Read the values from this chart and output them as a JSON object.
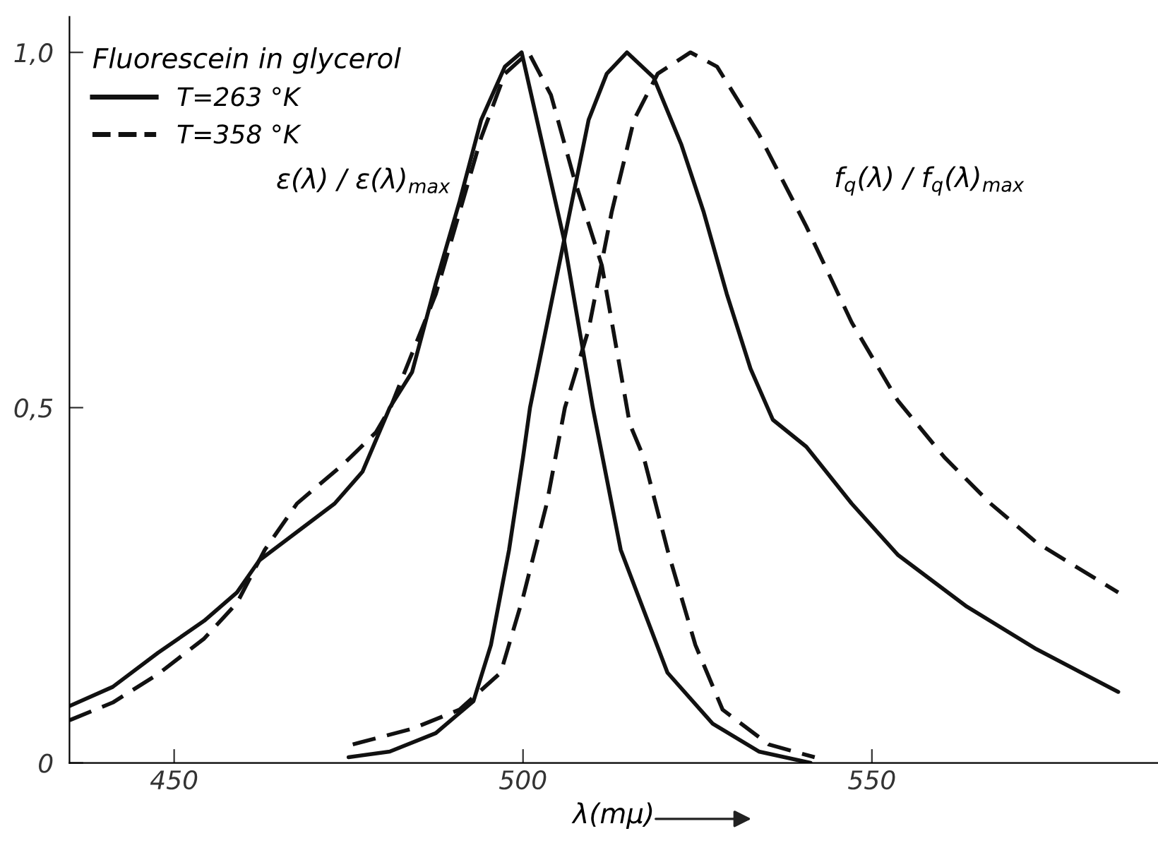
{
  "chart_data": {
    "type": "line",
    "xlabel": "λ(mμ)",
    "legend_title": "Fluorescein in glycerol",
    "legend": "top left",
    "grid": false,
    "marker": "none",
    "xlim": [
      435,
      591
    ],
    "ylim": [
      0,
      1.05
    ],
    "xticks": [
      450,
      500,
      550
    ],
    "yticks": [
      {
        "value": 0,
        "label": "0"
      },
      {
        "value": 0.5,
        "label": "0,5"
      },
      {
        "value": 1.0,
        "label": "1,0"
      }
    ],
    "annotations": [
      "ε(λ) / ε(λ)$_{max}$",
      "f$_{q}$(λ) / f$_{q}$(λ)$_{max}$"
    ],
    "series": [
      {
        "name": "T=263 °K",
        "color": "#111111",
        "line_style": "solid",
        "x": [
          435,
          441.2,
          447.7,
          454.3,
          459,
          462.2,
          467.6,
          473,
          477,
          480.9,
          484.1,
          487.5,
          490.9,
          494,
          497.4,
          499.8,
          505.8,
          510,
          514,
          520.7,
          527.2,
          533.8,
          541.2
        ],
        "values": [
          0.08,
          0.107,
          0.155,
          0.2,
          0.24,
          0.285,
          0.325,
          0.365,
          0.41,
          0.5,
          0.55,
          0.675,
          0.79,
          0.905,
          0.98,
          1.0,
          0.74,
          0.5,
          0.3,
          0.127,
          0.055,
          0.016,
          0.0
        ]
      },
      {
        "name": "T=358 °K",
        "color": "#111111",
        "line_style": "dashed",
        "x": [
          435,
          441.2,
          447.7,
          454.3,
          459,
          463,
          467.6,
          474.2,
          478.9,
          481,
          487.5,
          490.9,
          494,
          497.4,
          500.8,
          504,
          507.4,
          511.3,
          515.3,
          517.3,
          520.7,
          524.7,
          528.6,
          535.2,
          541.8
        ],
        "values": [
          0.06,
          0.085,
          0.125,
          0.175,
          0.225,
          0.3,
          0.365,
          0.42,
          0.465,
          0.5,
          0.66,
          0.775,
          0.88,
          0.97,
          1.0,
          0.94,
          0.82,
          0.7,
          0.477,
          0.43,
          0.3,
          0.166,
          0.075,
          0.026,
          0.008
        ]
      },
      {
        "color": "#111111",
        "line_style": "solid",
        "x": [
          475,
          480.9,
          487.5,
          492.9,
          495.4,
          498,
          500,
          501,
          509.4,
          512,
          514.9,
          518.7,
          522.7,
          525.9,
          529.2,
          532.6,
          535.8,
          540.6,
          547.1,
          553.7,
          563.6,
          573.6,
          585.3
        ],
        "values": [
          0.008,
          0.016,
          0.042,
          0.087,
          0.166,
          0.3,
          0.43,
          0.5,
          0.905,
          0.97,
          1.0,
          0.965,
          0.87,
          0.775,
          0.66,
          0.555,
          0.483,
          0.445,
          0.365,
          0.293,
          0.22,
          0.16,
          0.1
        ]
      },
      {
        "color": "#111111",
        "line_style": "dashed",
        "x": [
          475.6,
          484.1,
          490.9,
          496.8,
          500,
          503.4,
          506,
          509.4,
          512.7,
          515.9,
          519.3,
          524,
          527.8,
          533.8,
          540.6,
          547.1,
          553.7,
          560.4,
          567,
          573.6,
          585.3
        ],
        "values": [
          0.026,
          0.048,
          0.075,
          0.127,
          0.233,
          0.365,
          0.5,
          0.61,
          0.775,
          0.905,
          0.97,
          1.0,
          0.98,
          0.885,
          0.755,
          0.62,
          0.51,
          0.43,
          0.365,
          0.31,
          0.24
        ]
      }
    ]
  }
}
